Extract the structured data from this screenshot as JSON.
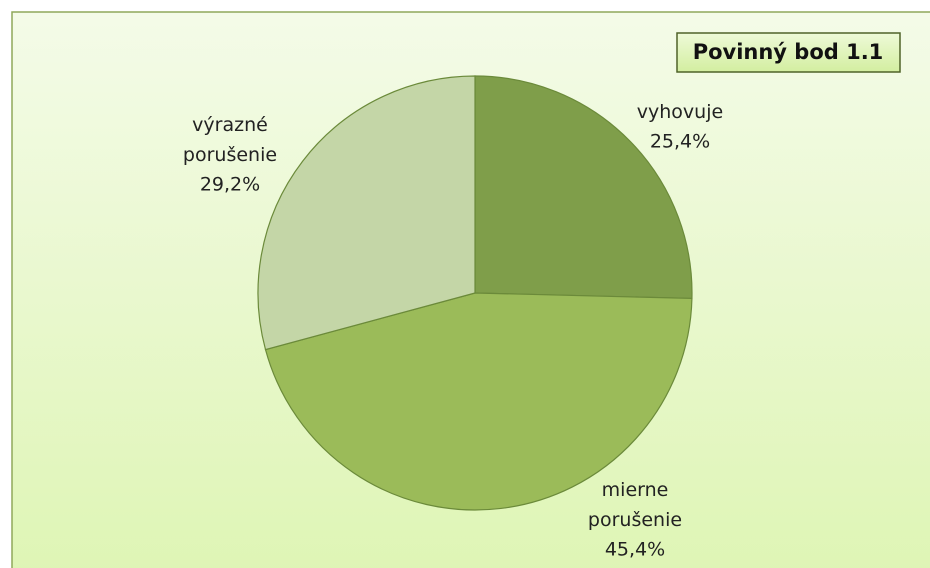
{
  "chart_data": {
    "type": "pie",
    "title": "Povinný bod 1.1",
    "categories": [
      "vyhovuje",
      "mierne porušenie",
      "výrazné porušenie"
    ],
    "values": [
      25.4,
      45.4,
      29.2
    ],
    "value_labels": [
      "25,4%",
      "45,4%",
      "29,2%"
    ],
    "colors": [
      "#7f9e4a",
      "#9bbb59",
      "#c4d6a7"
    ]
  }
}
